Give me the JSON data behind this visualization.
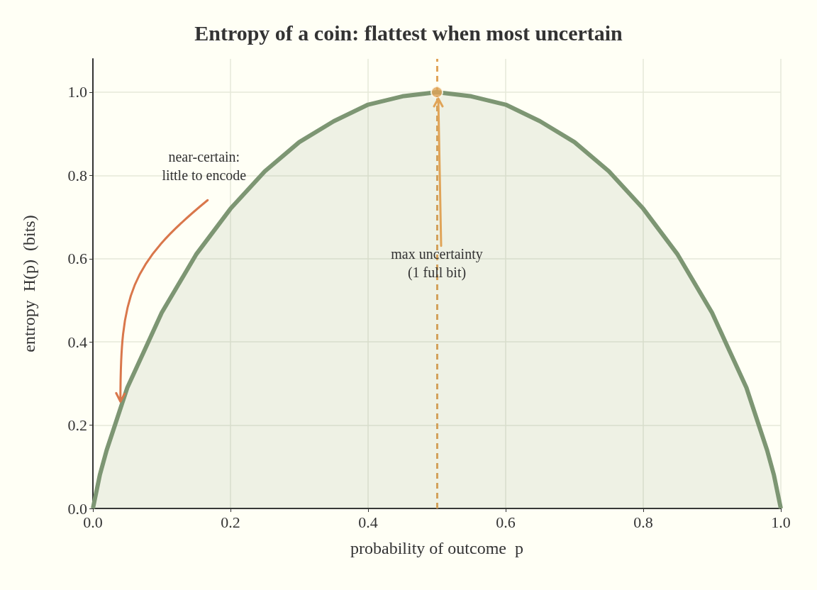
{
  "chart_data": {
    "type": "area",
    "title": "Entropy of a coin: flattest when most uncertain",
    "xlabel": "probability of outcome  p",
    "ylabel": "entropy  H(p)  (bits)",
    "series": [
      {
        "color": "#7d9673",
        "x": [
          0,
          0.01,
          0.02,
          0.03,
          0.05,
          0.075,
          0.1,
          0.15,
          0.2,
          0.25,
          0.3,
          0.35,
          0.4,
          0.45,
          0.5,
          0.55,
          0.6,
          0.65,
          0.7,
          0.75,
          0.8,
          0.85,
          0.9,
          0.925,
          0.95,
          0.97,
          0.98,
          0.99,
          1
        ],
        "values": [
          0,
          0.08,
          0.14,
          0.19,
          0.29,
          0.38,
          0.47,
          0.61,
          0.72,
          0.81,
          0.88,
          0.93,
          0.97,
          0.99,
          1.0,
          0.99,
          0.97,
          0.93,
          0.88,
          0.81,
          0.72,
          0.61,
          0.47,
          0.38,
          0.29,
          0.19,
          0.14,
          0.08,
          0
        ]
      },
      {
        "type": "scatter",
        "color": "#e0a458",
        "marker": "circle",
        "x": [
          0.5
        ],
        "values": [
          1.0
        ]
      }
    ],
    "xlim": [
      0,
      1.0
    ],
    "ylim": [
      0,
      1.08
    ],
    "xticks": [
      {
        "value": 0,
        "label": "0.0"
      },
      0.2,
      0.4,
      0.6,
      0.8,
      {
        "value": 1,
        "label": "1.0"
      }
    ],
    "yticks": [
      {
        "value": 0,
        "label": "0.0"
      },
      0.2,
      0.4,
      0.6,
      0.8,
      {
        "value": 1,
        "label": "1.0"
      }
    ],
    "ref_lines": [
      {
        "axis": "x",
        "value": 0.5,
        "color": "#e0a458",
        "line_style": "dashed"
      }
    ],
    "annotations": [
      {
        "text": "near-certain:\nlittle to encode",
        "x": 0.04,
        "y": 0.25
      },
      {
        "text": "max uncertainty\n(1 full bit)",
        "x": 0.5,
        "y": 0.59
      }
    ],
    "grid": true,
    "legend": false
  }
}
